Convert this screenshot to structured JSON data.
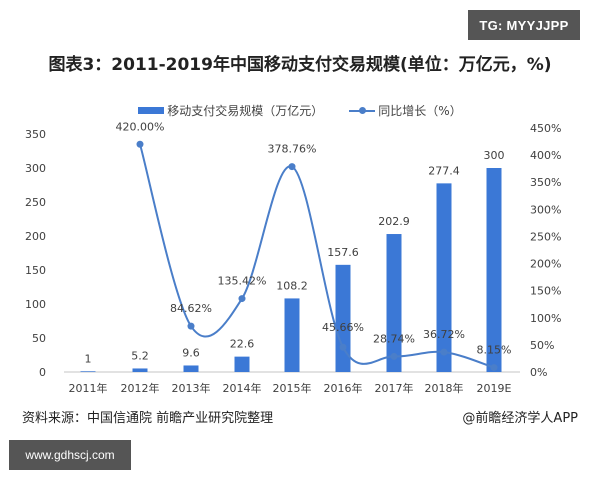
{
  "badges": {
    "top_right": "TG: MYYJJPP",
    "bottom_left": "www.gdhscj.com"
  },
  "title": "图表3：2011-2019年中国移动支付交易规模(单位：万亿元，%)",
  "legend": {
    "bar_label": "移动支付交易规模（万亿元）",
    "line_label": "同比增长（%）"
  },
  "footer": {
    "source": "资料来源：中国信通院 前瞻产业研究院整理",
    "credit": "@前瞻经济学人APP"
  },
  "colors": {
    "bar": "#3b78d6",
    "line": "#4a7ec9",
    "axis": "#d9d9d9",
    "text": "#404040"
  },
  "chart_data": {
    "type": "bar",
    "title": "图表3：2011-2019年中国移动支付交易规模(单位：万亿元，%)",
    "categories": [
      "2011年",
      "2012年",
      "2013年",
      "2014年",
      "2015年",
      "2016年",
      "2017年",
      "2018年",
      "2019E"
    ],
    "series": [
      {
        "name": "移动支付交易规模（万亿元）",
        "type": "bar",
        "axis": "left",
        "values": [
          1,
          5.2,
          9.6,
          22.6,
          108.2,
          157.6,
          202.9,
          277.4,
          300
        ],
        "labels": [
          "1",
          "5.2",
          "9.6",
          "22.6",
          "108.2",
          "157.6",
          "202.9",
          "277.4",
          "300"
        ]
      },
      {
        "name": "同比增长（%）",
        "type": "line",
        "axis": "right",
        "smooth": true,
        "values": [
          null,
          420.0,
          84.62,
          135.42,
          378.76,
          45.66,
          28.74,
          36.72,
          8.15
        ],
        "labels": [
          "",
          "420.00%",
          "84.62%",
          "135.42%",
          "378.76%",
          "45.66%",
          "28.74%",
          "36.72%",
          "8.15%"
        ]
      }
    ],
    "left_axis": {
      "range": [
        0,
        350
      ],
      "ticks": [
        "0",
        "50",
        "100",
        "150",
        "200",
        "250",
        "300",
        "350"
      ]
    },
    "right_axis": {
      "range": [
        0,
        450
      ],
      "ticks": [
        "0%",
        "50%",
        "100%",
        "150%",
        "200%",
        "250%",
        "300%",
        "350%",
        "400%",
        "450%"
      ]
    },
    "grid": false,
    "legend_position": "top"
  }
}
